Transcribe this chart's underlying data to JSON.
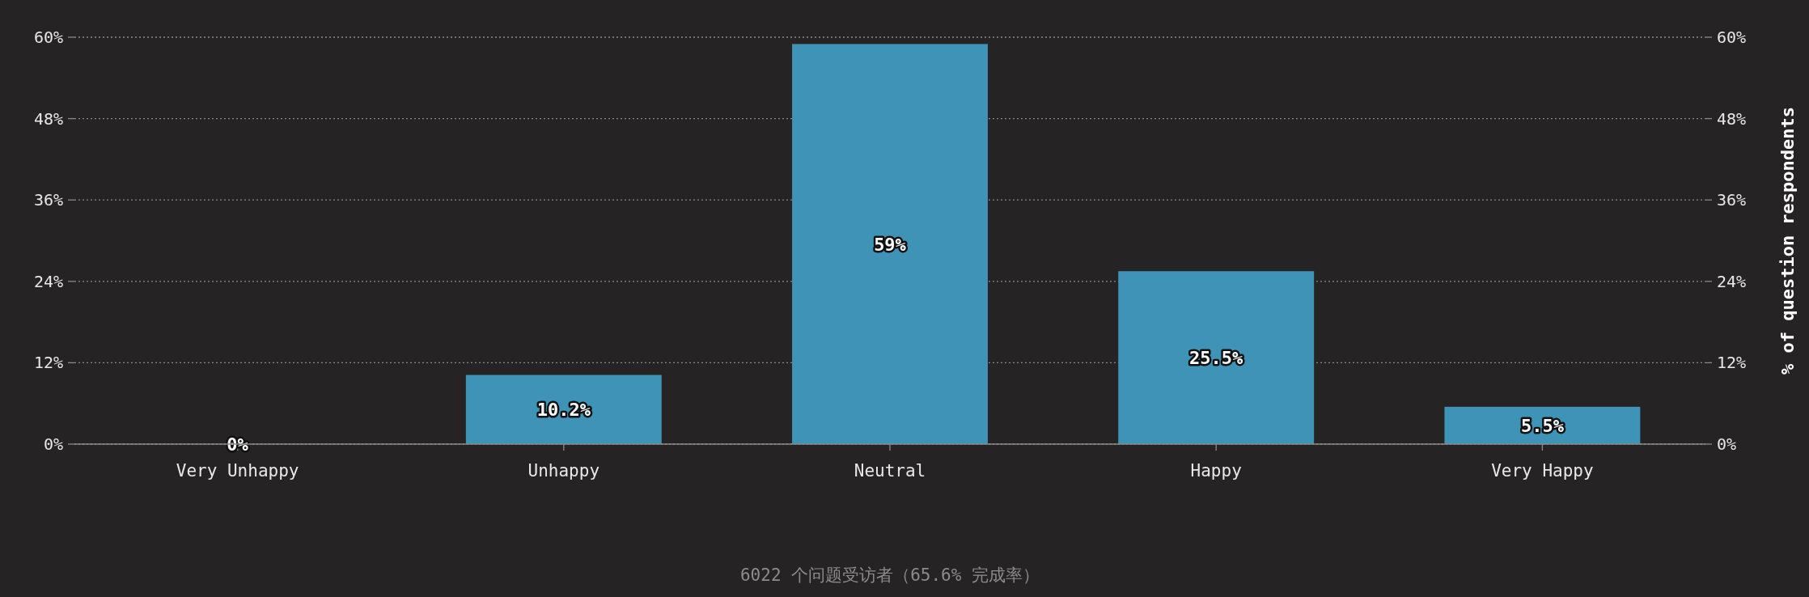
{
  "chart_data": {
    "type": "bar",
    "categories": [
      "Very Unhappy",
      "Unhappy",
      "Neutral",
      "Happy",
      "Very Happy"
    ],
    "values": [
      0,
      10.2,
      59,
      25.5,
      5.5
    ],
    "value_labels": [
      "0%",
      "10.2%",
      "59%",
      "25.5%",
      "5.5%"
    ],
    "color": "#3f93b7",
    "ylim": [
      0,
      60
    ],
    "yticks": [
      {
        "value": 0,
        "label": "0%"
      },
      {
        "value": 12,
        "label": "12%"
      },
      {
        "value": 24,
        "label": "24%"
      },
      {
        "value": 36,
        "label": "36%"
      },
      {
        "value": 48,
        "label": "48%"
      },
      {
        "value": 60,
        "label": "60%"
      }
    ],
    "y2lim": [
      0,
      60
    ],
    "y2ticks": [
      {
        "value": 0,
        "label": "0%"
      },
      {
        "value": 12,
        "label": "12%"
      },
      {
        "value": 24,
        "label": "24%"
      },
      {
        "value": 36,
        "label": "36%"
      },
      {
        "value": 48,
        "label": "48%"
      },
      {
        "value": 60,
        "label": "60%"
      }
    ],
    "y2label": "% of question respondents",
    "grid": "y",
    "annotations": [
      "6022 个问题受访者（65.6% 完成率）"
    ]
  }
}
